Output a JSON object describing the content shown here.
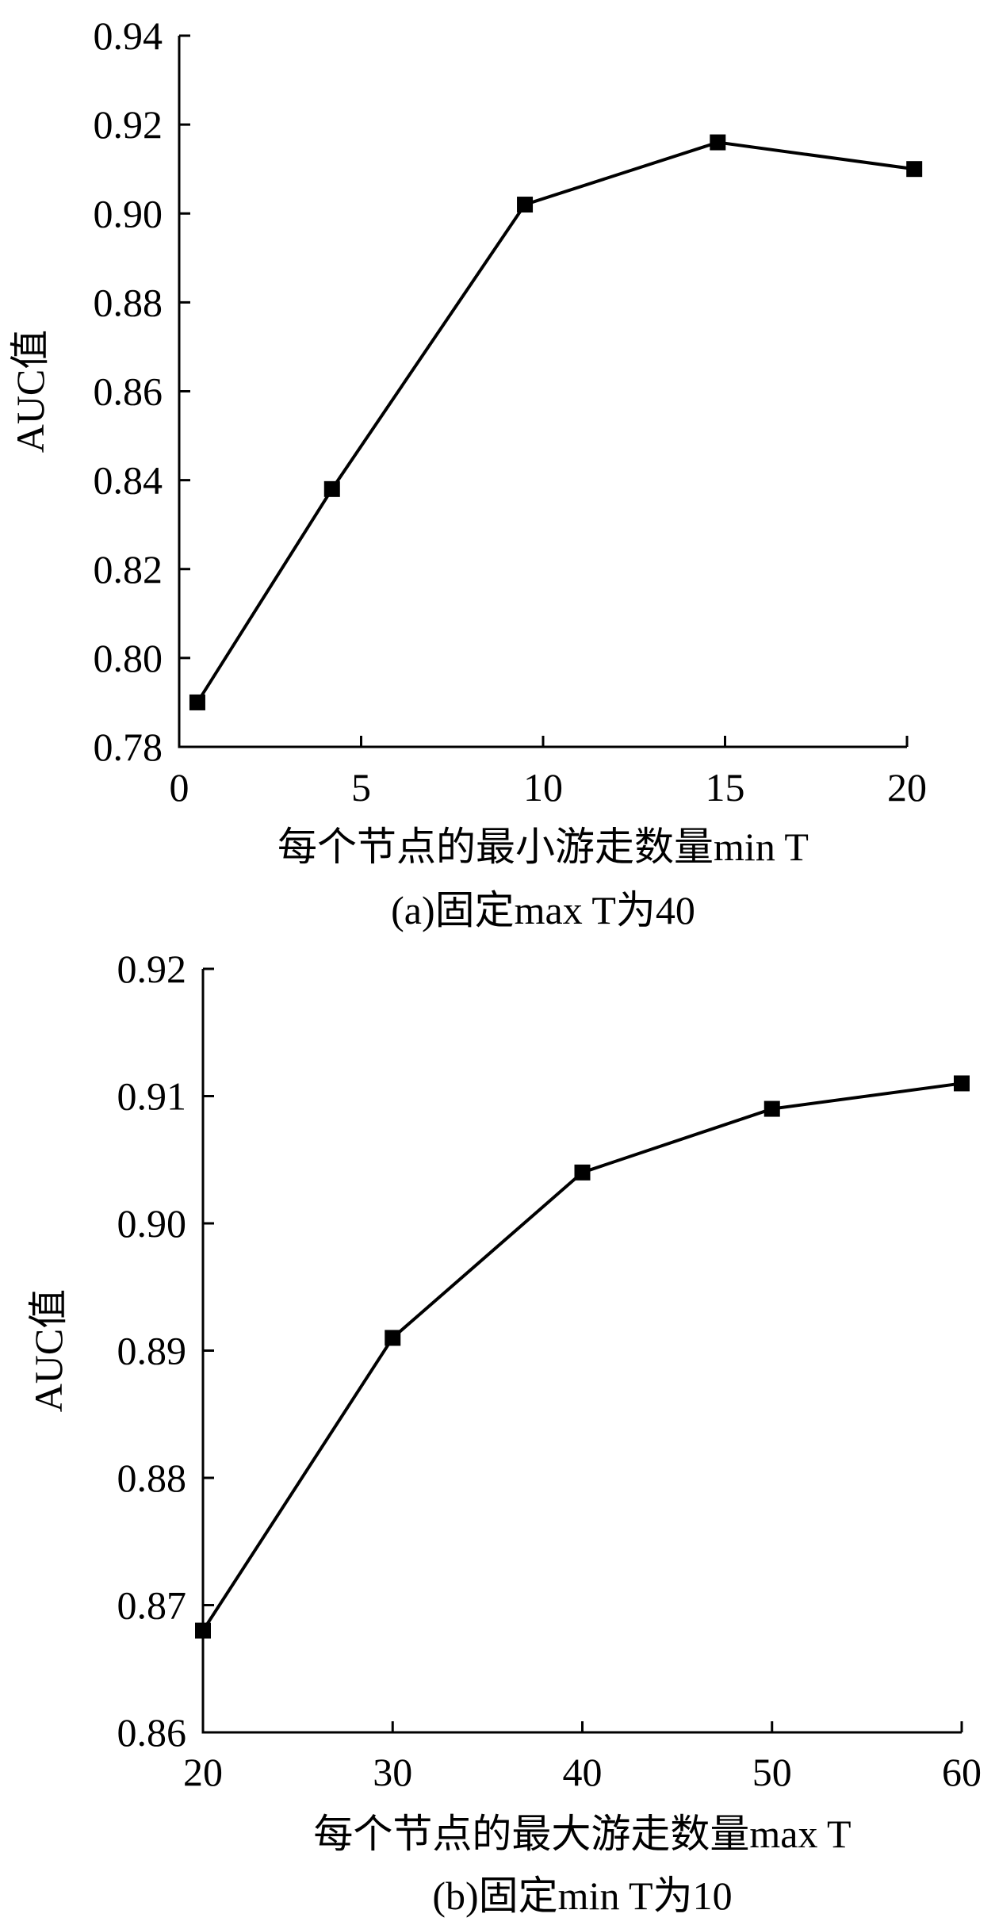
{
  "chart_data": [
    {
      "type": "line",
      "x": [
        0.5,
        4.2,
        9.5,
        14.8,
        20.2
      ],
      "series": [
        {
          "values": [
            0.79,
            0.838,
            0.902,
            0.916,
            0.91
          ],
          "marker": "square",
          "color": "#000000"
        }
      ],
      "xlim": [
        0,
        20
      ],
      "ylim": [
        0.78,
        0.94
      ],
      "x_ticks": [
        0,
        5,
        10,
        15,
        20
      ],
      "y_ticks": [
        0.78,
        0.8,
        0.82,
        0.84,
        0.86,
        0.88,
        0.9,
        0.92,
        0.94
      ],
      "x_tick_labels": [
        "0",
        "5",
        "10",
        "15",
        "20"
      ],
      "y_tick_labels": [
        "0.78",
        "0.80",
        "0.82",
        "0.84",
        "0.86",
        "0.88",
        "0.90",
        "0.92",
        "0.94"
      ],
      "xlabel": "每个节点的最小游走数量min T",
      "ylabel": "AUC值",
      "caption": "(a)固定max T为40",
      "grid": false
    },
    {
      "type": "line",
      "x": [
        20,
        30,
        40,
        50,
        60
      ],
      "series": [
        {
          "values": [
            0.868,
            0.891,
            0.904,
            0.909,
            0.911
          ],
          "marker": "square",
          "color": "#000000"
        }
      ],
      "xlim": [
        20,
        60
      ],
      "ylim": [
        0.86,
        0.92
      ],
      "x_ticks": [
        20,
        30,
        40,
        50,
        60
      ],
      "y_ticks": [
        0.86,
        0.87,
        0.88,
        0.89,
        0.9,
        0.91,
        0.92
      ],
      "x_tick_labels": [
        "20",
        "30",
        "40",
        "50",
        "60"
      ],
      "y_tick_labels": [
        "0.86",
        "0.87",
        "0.88",
        "0.89",
        "0.90",
        "0.91",
        "0.92"
      ],
      "xlabel": "每个节点的最大游走数量max T",
      "ylabel": "AUC值",
      "caption": "(b)固定min T为10",
      "grid": false
    }
  ]
}
